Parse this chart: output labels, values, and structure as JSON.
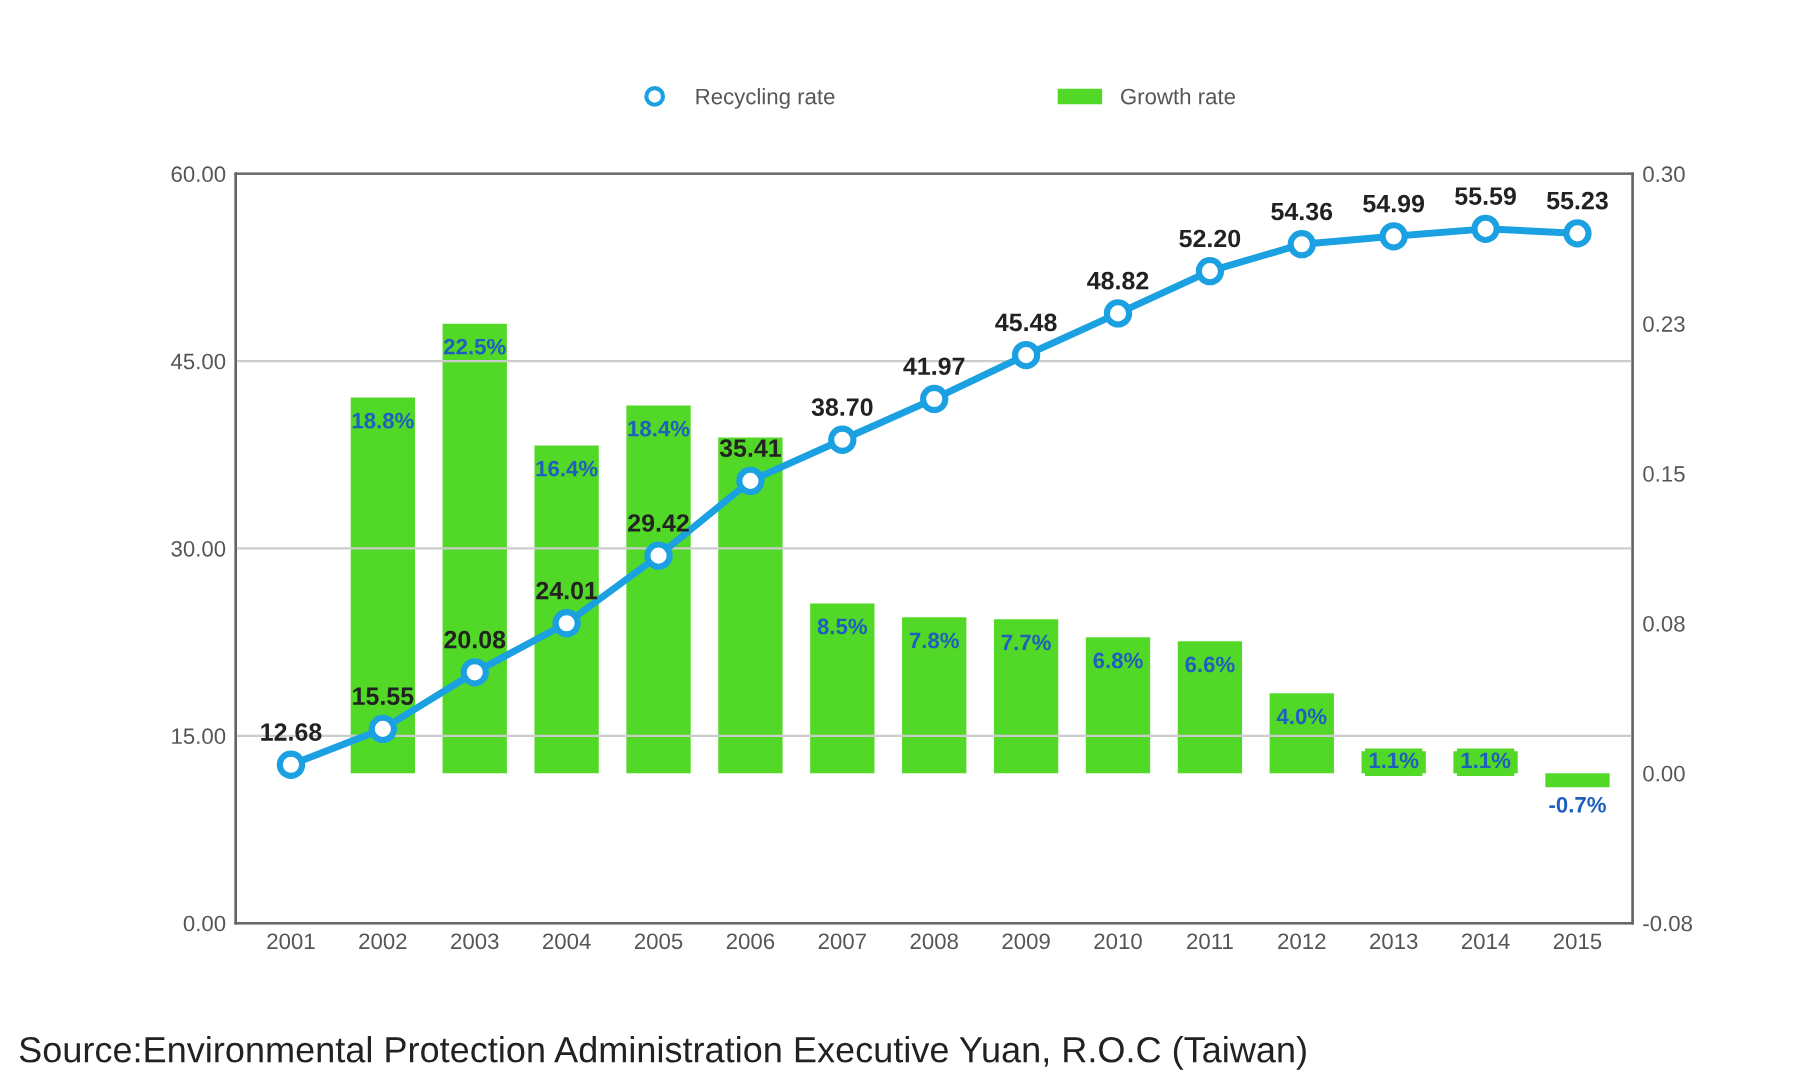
{
  "chart_data": {
    "type": "bar",
    "categories": [
      "2001",
      "2002",
      "2003",
      "2004",
      "2005",
      "2006",
      "2007",
      "2008",
      "2009",
      "2010",
      "2011",
      "2012",
      "2013",
      "2014",
      "2015"
    ],
    "series": [
      {
        "name": "Recycling rate",
        "type": "line",
        "color": "#1ba1e2",
        "marker": "circle",
        "values": [
          12.68,
          15.55,
          20.08,
          24.01,
          29.42,
          35.41,
          38.7,
          41.97,
          45.48,
          48.82,
          52.2,
          54.36,
          54.99,
          55.59,
          55.23
        ],
        "value_labels": [
          "12.68",
          "15.55",
          "20.08",
          "24.01",
          "29.42",
          "35.41",
          "38.70",
          "41.97",
          "45.48",
          "48.82",
          "52.20",
          "54.36",
          "54.99",
          "55.59",
          "55.23"
        ]
      },
      {
        "name": "Growth rate",
        "axis": "y2",
        "color": "#52d826",
        "values": [
          null,
          0.188,
          0.225,
          0.164,
          0.184,
          0.168,
          0.085,
          0.078,
          0.077,
          0.068,
          0.066,
          0.04,
          0.011,
          0.011,
          -0.007
        ],
        "value_labels": [
          null,
          "18.8%",
          "22.5%",
          "16.4%",
          "18.4%",
          null,
          "8.5%",
          "7.8%",
          "7.7%",
          "6.8%",
          "6.6%",
          "4.0%",
          "1.1%",
          "1.1%",
          "-0.7%"
        ]
      }
    ],
    "ylim": [
      0,
      60
    ],
    "yticks": [
      {
        "value": 0,
        "label": "0.00"
      },
      {
        "value": 15,
        "label": "15.00"
      },
      {
        "value": 30,
        "label": "30.00"
      },
      {
        "value": 45,
        "label": "45.00"
      },
      {
        "value": 60,
        "label": "60.00"
      }
    ],
    "y2lim": [
      -0.075,
      0.3
    ],
    "y2ticks": [
      {
        "value": -0.075,
        "label": "-0.08"
      },
      {
        "value": 0,
        "label": "0.00"
      },
      {
        "value": 0.075,
        "label": "0.08"
      },
      {
        "value": 0.15,
        "label": "0.15"
      },
      {
        "value": 0.225,
        "label": "0.23"
      },
      {
        "value": 0.3,
        "label": "0.30"
      }
    ],
    "grid": "y",
    "legend": "top",
    "annotations": [
      "Source:Environmental Protection Administration Executive Yuan, R.O.C (Taiwan)"
    ]
  }
}
